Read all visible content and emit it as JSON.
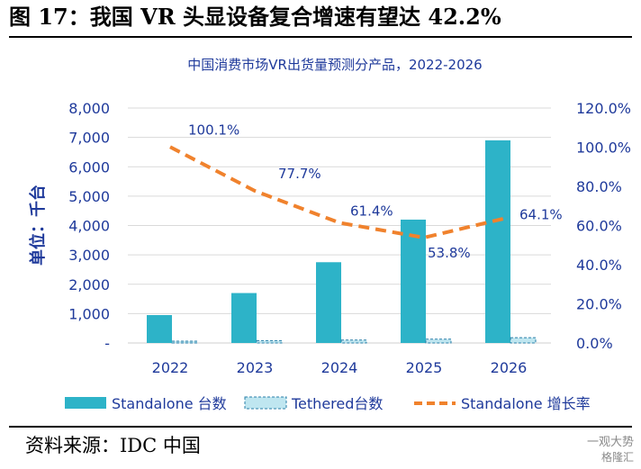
{
  "figure_title": "图 17：我国 VR 头显设备复合增速有望达 42.2%",
  "source_text": "资料来源：IDC 中国",
  "watermark": {
    "line1": "一观大势",
    "line2": "格隆汇"
  },
  "chart_data": {
    "type": "bar",
    "title": "中国消费市场VR出货量预测分产品，2022-2026",
    "ylabel": "单位：千台",
    "categories": [
      "2022",
      "2023",
      "2024",
      "2025",
      "2026"
    ],
    "ylim": [
      0,
      8000
    ],
    "y_ticks": [
      "-",
      "1,000",
      "2,000",
      "3,000",
      "4,000",
      "5,000",
      "6,000",
      "7,000",
      "8,000"
    ],
    "y2lim": [
      0,
      120
    ],
    "y2_ticks": [
      "0.0%",
      "20.0%",
      "40.0%",
      "60.0%",
      "80.0%",
      "100.0%",
      "120.0%"
    ],
    "grid": "horizontal",
    "legend_position": "bottom",
    "series": [
      {
        "name": "Standalone 台数",
        "kind": "bar",
        "axis": "left",
        "color": "#2db3c8",
        "values": [
          950,
          1700,
          2750,
          4200,
          6900
        ]
      },
      {
        "name": "Tethered台数",
        "kind": "bar",
        "axis": "left",
        "color": "#bfe6f0",
        "border": "#2a7fa8",
        "pattern": "dashed",
        "values": [
          60,
          80,
          100,
          130,
          180
        ]
      },
      {
        "name": "Standalone 增长率",
        "kind": "line",
        "axis": "right",
        "color": "#f0822d",
        "style": "dashed",
        "values": [
          100.1,
          77.7,
          61.4,
          53.8,
          64.1
        ],
        "labels": [
          "100.1%",
          "77.7%",
          "61.4%",
          "53.8%",
          "64.1%"
        ]
      }
    ],
    "colors": {
      "axis_text": "#1f3a9b",
      "title_text": "#1f3a9b",
      "grid": "#d9d9d9"
    }
  }
}
